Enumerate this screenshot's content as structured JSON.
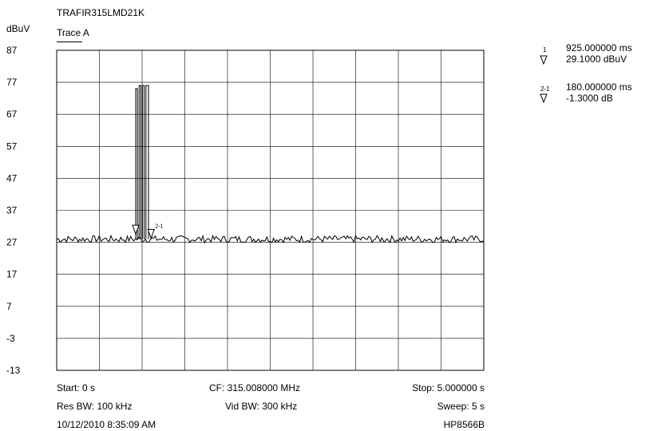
{
  "header": {
    "title": "TRAFIR315LMD21K",
    "trace_label": "Trace A",
    "unit_label": "dBuV"
  },
  "markers": [
    {
      "num": "1",
      "time": "925.000000 ms",
      "value": "29.1000 dBuV",
      "icon": "delta-triangle-icon"
    },
    {
      "num": "2-1",
      "time": "180.000000 ms",
      "value": "-1.3000 dB",
      "icon": "delta-triangle-icon"
    }
  ],
  "footer": {
    "start": "Start: 0 s",
    "cf": "CF: 315.008000 MHz",
    "stop": "Stop: 5.000000 s",
    "res_bw": "Res BW: 100 kHz",
    "vid_bw": "Vid BW: 300 kHz",
    "sweep": "Sweep: 5 s",
    "timestamp": "10/12/2010 8:35:09 AM",
    "instrument": "HP8566B"
  },
  "chart_data": {
    "type": "line",
    "ylabel": "dBuV",
    "ylim": [
      -13,
      87
    ],
    "xlim": [
      0,
      5
    ],
    "x_unit": "s",
    "yticks": [
      "87",
      "77",
      "67",
      "57",
      "47",
      "37",
      "27",
      "17",
      "7",
      "-3",
      "-13"
    ],
    "grid": true,
    "series": [
      {
        "name": "Trace A",
        "noise_floor_dbuv": 28,
        "pulses": [
          {
            "start_s": 0.925,
            "end_s": 0.945,
            "peak_dbuv": 75
          },
          {
            "start_s": 0.965,
            "end_s": 0.985,
            "peak_dbuv": 76
          },
          {
            "start_s": 1.005,
            "end_s": 1.025,
            "peak_dbuv": 76
          },
          {
            "start_s": 1.045,
            "end_s": 1.075,
            "peak_dbuv": 76
          }
        ]
      }
    ],
    "marker_points": [
      {
        "label": "1",
        "x_s": 0.925,
        "y_dbuv": 29.1
      },
      {
        "label": "2-1",
        "x_s": 1.105,
        "y_dbuv": 27.8
      }
    ]
  }
}
